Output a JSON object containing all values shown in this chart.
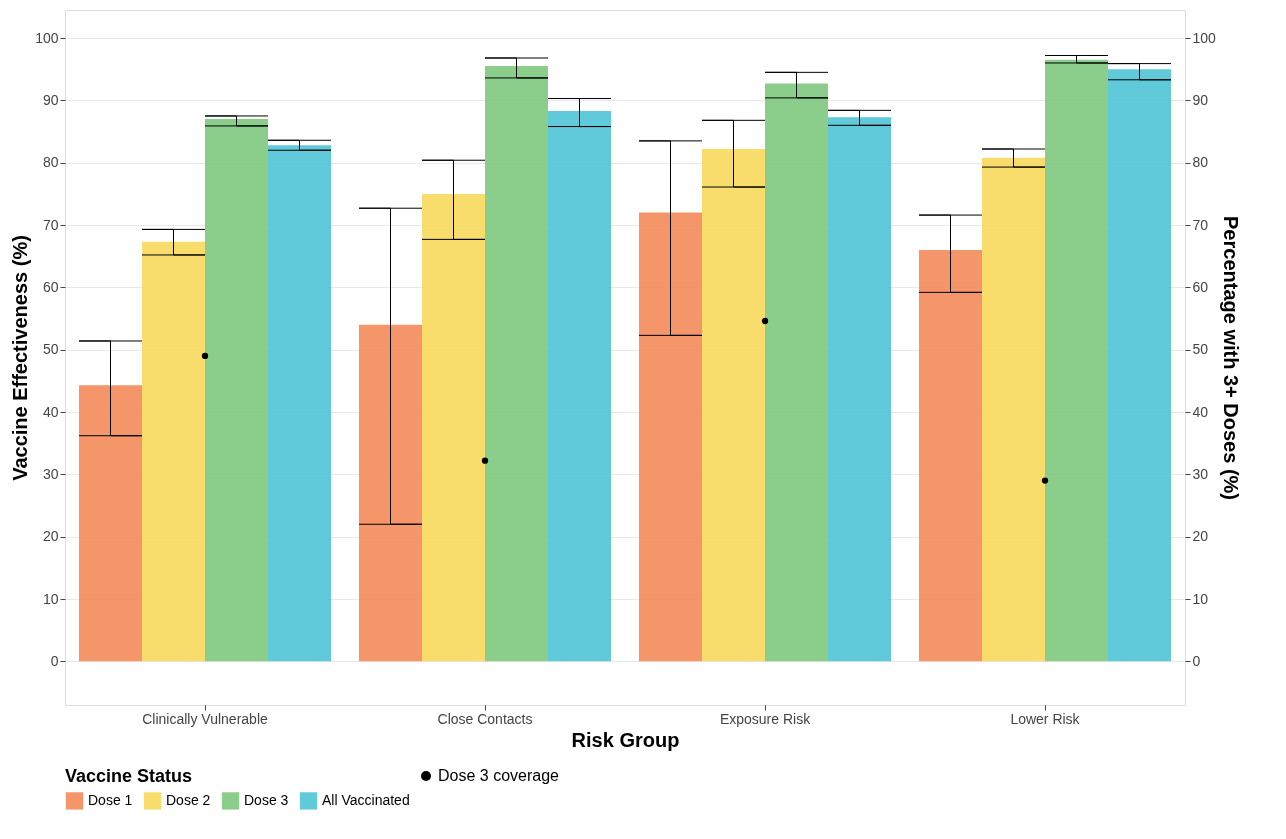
{
  "chart_data": {
    "type": "bar",
    "xlabel": "Risk Group",
    "ylabel": "Vaccine Effectiveness (%)",
    "y2label": "Percentage with 3+ Doses (%)",
    "legend_title": "Vaccine Status",
    "legend": "bottom",
    "grid": true,
    "categories": [
      "Clinically Vulnerable",
      "Close Contacts",
      "Exposure Risk",
      "Lower Risk"
    ],
    "ylim": [
      -7,
      104.5
    ],
    "yticks": [
      0,
      10,
      20,
      30,
      40,
      50,
      60,
      70,
      80,
      90,
      100
    ],
    "y2lim": [
      -7,
      104.5
    ],
    "y2ticks": [
      0,
      10,
      20,
      30,
      40,
      50,
      60,
      70,
      80,
      90,
      100
    ],
    "series": [
      {
        "name": "Dose 1",
        "color": "#f4895a",
        "values": [
          44.3,
          54,
          72,
          66
        ],
        "errors": [
          [
            36.2,
            51.4
          ],
          [
            22,
            72.7
          ],
          [
            52.3,
            83.5
          ],
          [
            59.2,
            71.6
          ]
        ]
      },
      {
        "name": "Dose 2",
        "color": "#f7d95c",
        "values": [
          67.3,
          75,
          82.2,
          80.8
        ],
        "errors": [
          [
            65.2,
            69.3
          ],
          [
            67.7,
            80.4
          ],
          [
            76.1,
            86.8
          ],
          [
            79.3,
            82.2
          ]
        ]
      },
      {
        "name": "Dose 3",
        "color": "#7ec87e",
        "values": [
          87,
          95.5,
          92.7,
          96.5
        ],
        "errors": [
          [
            85.9,
            87.5
          ],
          [
            93.6,
            96.8
          ],
          [
            90.4,
            94.5
          ],
          [
            96,
            97.2
          ]
        ]
      },
      {
        "name": "All Vaccinated",
        "color": "#4fc4d6",
        "values": [
          82.8,
          88.3,
          87.3,
          95
        ],
        "errors": [
          [
            82,
            83.6
          ],
          [
            85.8,
            90.3
          ],
          [
            86,
            88.4
          ],
          [
            93.3,
            95.9
          ]
        ]
      },
      {
        "name": "Dose 3 coverage",
        "type": "scatter",
        "axis": "y2",
        "color": "#000000",
        "marker": "circle",
        "x": [
          "Clinically Vulnerable",
          "Close Contacts",
          "Exposure Risk",
          "Lower Risk"
        ],
        "values": [
          49,
          32.2,
          54.6,
          29
        ]
      }
    ]
  }
}
